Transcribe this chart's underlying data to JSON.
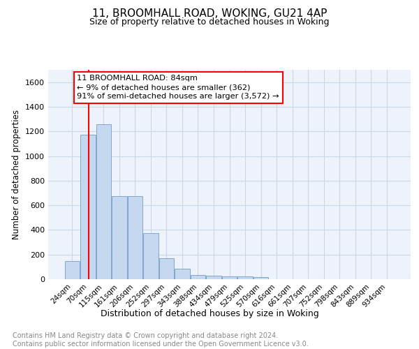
{
  "title": "11, BROOMHALL ROAD, WOKING, GU21 4AP",
  "subtitle": "Size of property relative to detached houses in Woking",
  "xlabel": "Distribution of detached houses by size in Woking",
  "ylabel": "Number of detached properties",
  "categories": [
    "24sqm",
    "70sqm",
    "115sqm",
    "161sqm",
    "206sqm",
    "252sqm",
    "297sqm",
    "343sqm",
    "388sqm",
    "434sqm",
    "479sqm",
    "525sqm",
    "570sqm",
    "616sqm",
    "661sqm",
    "707sqm",
    "752sqm",
    "798sqm",
    "843sqm",
    "889sqm",
    "934sqm"
  ],
  "values": [
    150,
    1175,
    1260,
    675,
    675,
    375,
    170,
    85,
    35,
    30,
    20,
    20,
    15,
    0,
    0,
    0,
    0,
    0,
    0,
    0,
    0
  ],
  "bar_color": "#c5d8f0",
  "bar_edge_color": "#5a8fc2",
  "bar_edge_width": 0.5,
  "red_line_x": 1.05,
  "annotation_text": "11 BROOMHALL ROAD: 84sqm\n← 9% of detached houses are smaller (362)\n91% of semi-detached houses are larger (3,572) →",
  "ylim": [
    0,
    1700
  ],
  "yticks": [
    0,
    200,
    400,
    600,
    800,
    1000,
    1200,
    1400,
    1600
  ],
  "footer_text": "Contains HM Land Registry data © Crown copyright and database right 2024.\nContains public sector information licensed under the Open Government Licence v3.0.",
  "grid_color": "#c8d8e8",
  "background_color": "#eef2fa"
}
